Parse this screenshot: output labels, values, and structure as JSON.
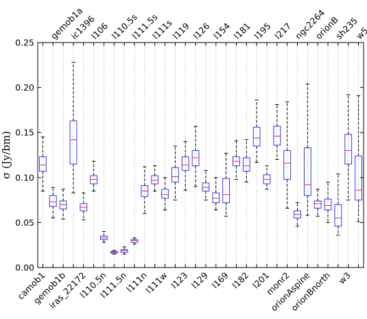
{
  "chart_data": {
    "type": "box",
    "ylabel": "σ (Jy/bm)",
    "ylim": [
      0,
      0.25
    ],
    "yticks": [
      "0.00",
      "0.05",
      "0.10",
      "0.15",
      "0.20",
      "0.25"
    ],
    "grid": "vertical dotted at each category",
    "colors": {
      "box": "#3333ff",
      "median": "#ff2222",
      "whisker": "#000000",
      "cap": "#000000",
      "flier": "#3333ff"
    },
    "boxes": [
      {
        "label": "camob1",
        "label_pos": "bottom",
        "whislo": 0.085,
        "q1": 0.107,
        "med": 0.114,
        "q3": 0.123,
        "whishi": 0.145,
        "fliers": []
      },
      {
        "label": "gemob1a",
        "label_pos": "top",
        "whislo": 0.055,
        "q1": 0.068,
        "med": 0.073,
        "q3": 0.08,
        "whishi": 0.089,
        "fliers": []
      },
      {
        "label": "gemob1b",
        "label_pos": "bottom",
        "whislo": 0.054,
        "q1": 0.065,
        "med": 0.07,
        "q3": 0.074,
        "whishi": 0.087,
        "fliers": []
      },
      {
        "label": "ic1396",
        "label_pos": "top",
        "whislo": 0.083,
        "q1": 0.115,
        "med": 0.142,
        "q3": 0.163,
        "whishi": 0.228,
        "fliers": []
      },
      {
        "label": "iras_22172",
        "label_pos": "bottom",
        "whislo": 0.053,
        "q1": 0.063,
        "med": 0.067,
        "q3": 0.071,
        "whishi": 0.083,
        "fliers": []
      },
      {
        "label": "l106",
        "label_pos": "top",
        "whislo": 0.085,
        "q1": 0.093,
        "med": 0.098,
        "q3": 0.102,
        "whishi": 0.118,
        "fliers": []
      },
      {
        "label": "l110.5n",
        "label_pos": "bottom",
        "whislo": 0.028,
        "q1": 0.031,
        "med": 0.033,
        "q3": 0.035,
        "whishi": 0.04,
        "fliers": []
      },
      {
        "label": "l110.5s",
        "label_pos": "top",
        "whislo": 0.015,
        "q1": 0.016,
        "med": 0.017,
        "q3": 0.018,
        "whishi": 0.019,
        "fliers": []
      },
      {
        "label": "l111.5n",
        "label_pos": "bottom",
        "whislo": 0.015,
        "q1": 0.017,
        "med": 0.019,
        "q3": 0.02,
        "whishi": 0.023,
        "fliers": []
      },
      {
        "label": "l111.5s",
        "label_pos": "top",
        "whislo": 0.026,
        "q1": 0.028,
        "med": 0.03,
        "q3": 0.031,
        "whishi": 0.033,
        "fliers": []
      },
      {
        "label": "l111n",
        "label_pos": "bottom",
        "whislo": 0.06,
        "q1": 0.079,
        "med": 0.085,
        "q3": 0.091,
        "whishi": 0.112,
        "fliers": []
      },
      {
        "label": "l111s",
        "label_pos": "top",
        "whislo": 0.085,
        "q1": 0.093,
        "med": 0.097,
        "q3": 0.102,
        "whishi": 0.113,
        "fliers": []
      },
      {
        "label": "l111w",
        "label_pos": "bottom",
        "whislo": 0.064,
        "q1": 0.077,
        "med": 0.081,
        "q3": 0.087,
        "whishi": 0.1,
        "fliers": []
      },
      {
        "label": "l119",
        "label_pos": "top",
        "whislo": 0.075,
        "q1": 0.095,
        "med": 0.101,
        "q3": 0.111,
        "whishi": 0.135,
        "fliers": []
      },
      {
        "label": "l123",
        "label_pos": "bottom",
        "whislo": 0.086,
        "q1": 0.108,
        "med": 0.114,
        "q3": 0.123,
        "whishi": 0.14,
        "fliers": []
      },
      {
        "label": "l126",
        "label_pos": "top",
        "whislo": 0.09,
        "q1": 0.113,
        "med": 0.122,
        "q3": 0.13,
        "whishi": 0.157,
        "fliers": []
      },
      {
        "label": "l129",
        "label_pos": "bottom",
        "whislo": 0.075,
        "q1": 0.085,
        "med": 0.089,
        "q3": 0.094,
        "whishi": 0.108,
        "fliers": []
      },
      {
        "label": "l154",
        "label_pos": "top",
        "whislo": 0.064,
        "q1": 0.072,
        "med": 0.077,
        "q3": 0.083,
        "whishi": 0.1,
        "fliers": []
      },
      {
        "label": "l169",
        "label_pos": "bottom",
        "whislo": 0.057,
        "q1": 0.072,
        "med": 0.081,
        "q3": 0.099,
        "whishi": 0.127,
        "fliers": []
      },
      {
        "label": "l181",
        "label_pos": "top",
        "whislo": 0.098,
        "q1": 0.113,
        "med": 0.118,
        "q3": 0.123,
        "whishi": 0.141,
        "fliers": []
      },
      {
        "label": "l182",
        "label_pos": "bottom",
        "whislo": 0.095,
        "q1": 0.107,
        "med": 0.113,
        "q3": 0.122,
        "whishi": 0.142,
        "fliers": []
      },
      {
        "label": "l195",
        "label_pos": "top",
        "whislo": 0.117,
        "q1": 0.135,
        "med": 0.144,
        "q3": 0.156,
        "whishi": 0.186,
        "fliers": []
      },
      {
        "label": "l201",
        "label_pos": "bottom",
        "whislo": 0.087,
        "q1": 0.093,
        "med": 0.098,
        "q3": 0.103,
        "whishi": 0.113,
        "fliers": []
      },
      {
        "label": "l217",
        "label_pos": "top",
        "whislo": 0.12,
        "q1": 0.136,
        "med": 0.146,
        "q3": 0.157,
        "whishi": 0.181,
        "fliers": []
      },
      {
        "label": "monr2",
        "label_pos": "bottom",
        "whislo": 0.066,
        "q1": 0.098,
        "med": 0.116,
        "q3": 0.13,
        "whishi": 0.184,
        "fliers": []
      },
      {
        "label": "ngc2264",
        "label_pos": "top",
        "whislo": 0.046,
        "q1": 0.055,
        "med": 0.059,
        "q3": 0.063,
        "whishi": 0.072,
        "fliers": []
      },
      {
        "label": "orionAspine",
        "label_pos": "bottom",
        "whislo": 0.058,
        "q1": 0.08,
        "med": 0.092,
        "q3": 0.133,
        "whishi": 0.204,
        "fliers": []
      },
      {
        "label": "orionB",
        "label_pos": "top",
        "whislo": 0.057,
        "q1": 0.066,
        "med": 0.071,
        "q3": 0.074,
        "whishi": 0.087,
        "fliers": []
      },
      {
        "label": "orionBnorth",
        "label_pos": "bottom",
        "whislo": 0.05,
        "q1": 0.064,
        "med": 0.069,
        "q3": 0.076,
        "whishi": 0.095,
        "fliers": []
      },
      {
        "label": "sh235",
        "label_pos": "top",
        "whislo": 0.036,
        "q1": 0.046,
        "med": 0.055,
        "q3": 0.07,
        "whishi": 0.104,
        "fliers": []
      },
      {
        "label": "w3",
        "label_pos": "bottom",
        "whislo": 0.075,
        "q1": 0.115,
        "med": 0.13,
        "q3": 0.148,
        "whishi": 0.192,
        "fliers": []
      },
      {
        "label": "w5",
        "label_pos": "top",
        "whislo": 0.051,
        "q1": 0.075,
        "med": 0.086,
        "q3": 0.124,
        "whishi": 0.191,
        "fliers": []
      }
    ]
  }
}
